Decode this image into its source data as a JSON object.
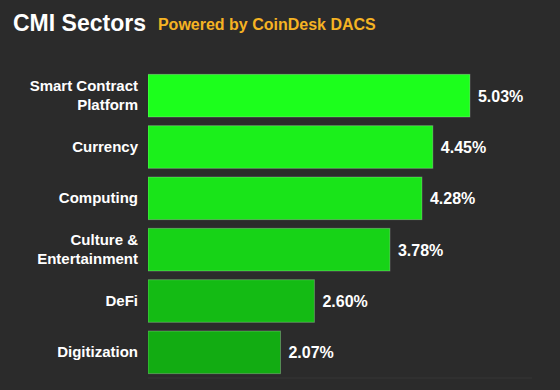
{
  "chart_data": {
    "type": "bar",
    "orientation": "horizontal",
    "title": "CMI Sectors",
    "subtitle": "Powered by CoinDesk DACS",
    "categories": [
      "Smart Contract Platform",
      "Currency",
      "Computing",
      "Culture & Entertainment",
      "DeFi",
      "Digitization"
    ],
    "values": [
      5.03,
      4.45,
      4.28,
      3.78,
      2.6,
      2.07
    ],
    "value_labels": [
      "5.03%",
      "4.45%",
      "4.28%",
      "3.78%",
      "2.60%",
      "2.07%"
    ],
    "colors": [
      "#1cff1c",
      "#1bf01b",
      "#19e419",
      "#17d317",
      "#14bb14",
      "#12ac12"
    ],
    "xlim": [
      0,
      6
    ],
    "xticks": [],
    "grid": false,
    "tick_labels": false,
    "data_labels": true
  }
}
